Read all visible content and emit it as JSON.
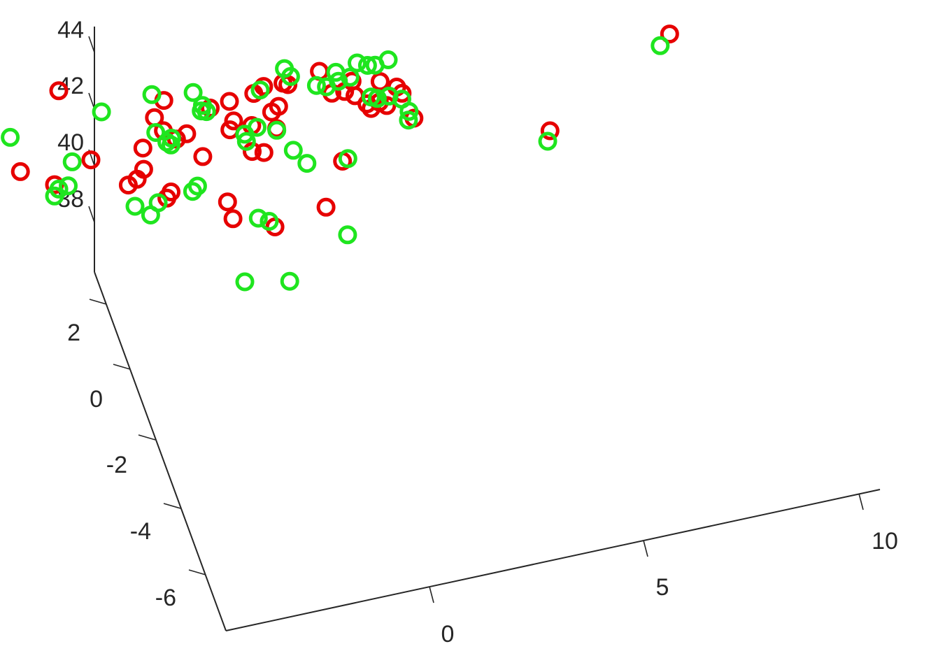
{
  "chart_data": {
    "type": "scatter",
    "projection": "3d",
    "title": "",
    "xlabel": "",
    "ylabel": "",
    "zlabel": "",
    "grid": false,
    "xlim": [
      -5,
      11
    ],
    "ylim": [
      -7,
      3
    ],
    "zlim": [
      36,
      44
    ],
    "x_ticks": [
      "0",
      "5",
      "10"
    ],
    "y_ticks": [
      "-6",
      "-4",
      "-2",
      "0",
      "2"
    ],
    "z_ticks": [
      "38",
      "40",
      "42",
      "44"
    ],
    "series": [
      {
        "color": "#e60000",
        "marker": "circle",
        "points": [
          {
            "x": -3.62,
            "y": 2.95,
            "z": 40.96
          },
          {
            "x": -1.85,
            "y": 2.93,
            "z": 42.83
          },
          {
            "x": 0.58,
            "y": 2.91,
            "z": 41.72
          },
          {
            "x": 2.1,
            "y": 2.9,
            "z": 41.2
          },
          {
            "x": 2.66,
            "y": 2.89,
            "z": 41.31
          },
          {
            "x": -2.72,
            "y": 2.96,
            "z": 40.23
          },
          {
            "x": 0.89,
            "y": 2.93,
            "z": 40.23
          },
          {
            "x": 1.51,
            "y": 2.94,
            "z": 39.4
          },
          {
            "x": -1.91,
            "y": 2.98,
            "z": 39.48
          },
          {
            "x": 2.92,
            "y": 2.93,
            "z": 41.42
          },
          {
            "x": 0.61,
            "y": 2.96,
            "z": 40.58
          },
          {
            "x": 0.14,
            "y": 2.97,
            "z": 40.11
          },
          {
            "x": -1.07,
            "y": 2.97,
            "z": 40.09
          },
          {
            "x": 0.4,
            "y": 2.96,
            "z": 41.11
          },
          {
            "x": 1.73,
            "y": 3.0,
            "z": 40.96
          },
          {
            "x": 3.26,
            "y": 2.98,
            "z": 39.76
          },
          {
            "x": -5.11,
            "y": 3.06,
            "z": 40.48
          },
          {
            "x": -4.42,
            "y": 3.06,
            "z": 39.27
          },
          {
            "x": 1.16,
            "y": 2.97,
            "z": 40.28
          },
          {
            "x": -4.77,
            "y": 2.54,
            "z": 41.55
          },
          {
            "x": -4.94,
            "y": 2.55,
            "z": 41.55
          },
          {
            "x": -0.82,
            "y": 1.7,
            "z": 41.28
          },
          {
            "x": -1.05,
            "y": 1.6,
            "z": 41.13
          },
          {
            "x": -1.34,
            "y": 1.49,
            "z": 41.16
          },
          {
            "x": -0.3,
            "y": 1.55,
            "z": 40.5
          },
          {
            "x": -0.45,
            "y": 1.48,
            "z": 40.42
          },
          {
            "x": 2.05,
            "y": 2.16,
            "z": 41.3
          },
          {
            "x": 1.58,
            "y": 2.21,
            "z": 41.24
          },
          {
            "x": 1.72,
            "y": 2.28,
            "z": 41.42
          },
          {
            "x": 2.66,
            "y": 2.14,
            "z": 41.8
          },
          {
            "x": 2.46,
            "y": 2.09,
            "z": 41.73
          },
          {
            "x": 2.77,
            "y": 2.15,
            "z": 42.57
          },
          {
            "x": 2.9,
            "y": 2.17,
            "z": 42.45
          },
          {
            "x": 3.54,
            "y": 2.05,
            "z": 42.86
          },
          {
            "x": 3.7,
            "y": 1.88,
            "z": 42.25
          },
          {
            "x": 1.99,
            "y": 2.07,
            "z": 40.52
          },
          {
            "x": 2.21,
            "y": 2.0,
            "z": 40.5
          },
          {
            "x": 1.36,
            "y": 1.83,
            "z": 38.66
          },
          {
            "x": 1.24,
            "y": 1.84,
            "z": 39.28
          },
          {
            "x": 2.16,
            "y": 1.6,
            "z": 38.4
          },
          {
            "x": 3.31,
            "y": 1.55,
            "z": 38.78
          },
          {
            "x": 3.94,
            "y": 1.87,
            "z": 39.79
          },
          {
            "x": 4.74,
            "y": 2.62,
            "z": 41.4
          },
          {
            "x": 4.56,
            "y": 2.61,
            "z": 41.11
          },
          {
            "x": 4.77,
            "y": 2.57,
            "z": 40.94
          },
          {
            "x": 5.01,
            "y": 2.52,
            "z": 40.64
          },
          {
            "x": 5.1,
            "y": 2.51,
            "z": 40.46
          },
          {
            "x": 5.29,
            "y": 2.51,
            "z": 40.62
          },
          {
            "x": 5.44,
            "y": 2.48,
            "z": 40.49
          },
          {
            "x": 5.37,
            "y": 2.59,
            "z": 41.22
          },
          {
            "x": 5.71,
            "y": 2.53,
            "z": 40.99
          },
          {
            "x": 5.82,
            "y": 2.51,
            "z": 40.76
          },
          {
            "x": 5.95,
            "y": 2.32,
            "z": 40.08
          },
          {
            "x": 4.88,
            "y": 3.41,
            "z": 44.94
          },
          {
            "x": 4.83,
            "y": 3.44,
            "z": 43.98
          },
          {
            "x": 8.12,
            "y": 3.27,
            "z": 43.81
          },
          {
            "x": 8.77,
            "y": 3.13,
            "z": 44.27
          },
          {
            "x": 8.69,
            "y": 3.16,
            "z": 43.56
          },
          {
            "x": 9.86,
            "y": 2.44,
            "z": 43.52
          },
          {
            "x": 8.44,
            "y": 1.44,
            "z": 39.93
          },
          {
            "x": 11.34,
            "y": 1.59,
            "z": 42.2
          }
        ]
      },
      {
        "color": "#1fe51f",
        "marker": "circle",
        "points": [
          {
            "x": -2.98,
            "y": 2.93,
            "z": 41.56
          },
          {
            "x": -1.53,
            "y": 2.94,
            "z": 40.21
          },
          {
            "x": -1.91,
            "y": 2.98,
            "z": 39.08
          },
          {
            "x": -4.88,
            "y": 3.09,
            "z": 41.16
          },
          {
            "x": -4.03,
            "y": 3.1,
            "z": 40.2
          },
          {
            "x": -1.81,
            "y": 2.98,
            "z": 39.29
          },
          {
            "x": -1.6,
            "y": 2.97,
            "z": 39.35
          },
          {
            "x": 0.79,
            "y": 2.95,
            "z": 40.27
          },
          {
            "x": -0.84,
            "y": 2.95,
            "z": 41.73
          },
          {
            "x": 0.31,
            "y": 2.92,
            "z": 42.0
          },
          {
            "x": 1.27,
            "y": 2.92,
            "z": 41.76
          },
          {
            "x": 1.48,
            "y": 2.91,
            "z": 41.25
          },
          {
            "x": 1.46,
            "y": 2.92,
            "z": 41.05
          },
          {
            "x": 1.59,
            "y": 2.93,
            "z": 40.97
          },
          {
            "x": 2.84,
            "y": 2.93,
            "z": 41.32
          },
          {
            "x": 0.44,
            "y": 2.97,
            "z": 40.56
          },
          {
            "x": 0.69,
            "y": 2.96,
            "z": 40.15
          },
          {
            "x": 0.8,
            "y": 2.98,
            "z": 39.99
          },
          {
            "x": 3.28,
            "y": 3.0,
            "z": 39.67
          },
          {
            "x": -4.34,
            "y": 2.56,
            "z": 40.91
          },
          {
            "x": -4.7,
            "y": 2.59,
            "z": 41.07
          },
          {
            "x": -1.23,
            "y": 1.43,
            "z": 40.45
          },
          {
            "x": -0.92,
            "y": 1.36,
            "z": 40.13
          },
          {
            "x": -0.66,
            "y": 1.47,
            "z": 40.34
          },
          {
            "x": 0.15,
            "y": 1.48,
            "z": 40.46
          },
          {
            "x": 0.31,
            "y": 1.54,
            "z": 40.52
          },
          {
            "x": 1.78,
            "y": 2.02,
            "z": 41.26
          },
          {
            "x": 1.78,
            "y": 1.97,
            "z": 41.07
          },
          {
            "x": 2.15,
            "y": 2.13,
            "z": 41.24
          },
          {
            "x": 2.88,
            "y": 2.25,
            "z": 42.92
          },
          {
            "x": 3.0,
            "y": 2.22,
            "z": 42.64
          },
          {
            "x": 3.51,
            "y": 2.1,
            "z": 42.31
          },
          {
            "x": 3.72,
            "y": 2.07,
            "z": 42.23
          },
          {
            "x": 3.96,
            "y": 2.02,
            "z": 42.41
          },
          {
            "x": 2.84,
            "y": 1.93,
            "z": 40.46
          },
          {
            "x": 3.12,
            "y": 1.88,
            "z": 39.97
          },
          {
            "x": 1.78,
            "y": 1.61,
            "z": 38.82
          },
          {
            "x": 2.01,
            "y": 1.58,
            "z": 38.67
          },
          {
            "x": 1.18,
            "y": 1.24,
            "z": 37.24
          },
          {
            "x": 2.18,
            "y": 1.18,
            "z": 37.01
          },
          {
            "x": 3.68,
            "y": 1.38,
            "z": 37.9
          },
          {
            "x": 4.11,
            "y": 1.93,
            "z": 39.75
          },
          {
            "x": 4.4,
            "y": 2.67,
            "z": 41.76
          },
          {
            "x": 4.7,
            "y": 2.63,
            "z": 41.54
          },
          {
            "x": 4.88,
            "y": 2.65,
            "z": 41.96
          },
          {
            "x": 5.1,
            "y": 2.62,
            "z": 41.84
          },
          {
            "x": 5.26,
            "y": 2.6,
            "z": 41.82
          },
          {
            "x": 5.52,
            "y": 2.54,
            "z": 42.0
          },
          {
            "x": 5.12,
            "y": 2.54,
            "z": 40.82
          },
          {
            "x": 5.25,
            "y": 2.52,
            "z": 40.75
          },
          {
            "x": 5.5,
            "y": 2.49,
            "z": 40.79
          },
          {
            "x": 5.76,
            "y": 2.44,
            "z": 40.66
          },
          {
            "x": 5.89,
            "y": 2.39,
            "z": 40.25
          },
          {
            "x": 5.86,
            "y": 2.37,
            "z": 39.98
          },
          {
            "x": 4.7,
            "y": 3.46,
            "z": 44.96
          },
          {
            "x": 4.78,
            "y": 3.45,
            "z": 44.14
          },
          {
            "x": 7.82,
            "y": 3.32,
            "z": 44.47
          },
          {
            "x": 8.39,
            "y": 3.3,
            "z": 44.87
          },
          {
            "x": 8.67,
            "y": 3.21,
            "z": 44.36
          },
          {
            "x": 9.69,
            "y": 3.14,
            "z": 44.94
          },
          {
            "x": 8.37,
            "y": 1.42,
            "z": 39.61
          },
          {
            "x": 11.12,
            "y": 1.59,
            "z": 41.86
          }
        ]
      }
    ]
  }
}
